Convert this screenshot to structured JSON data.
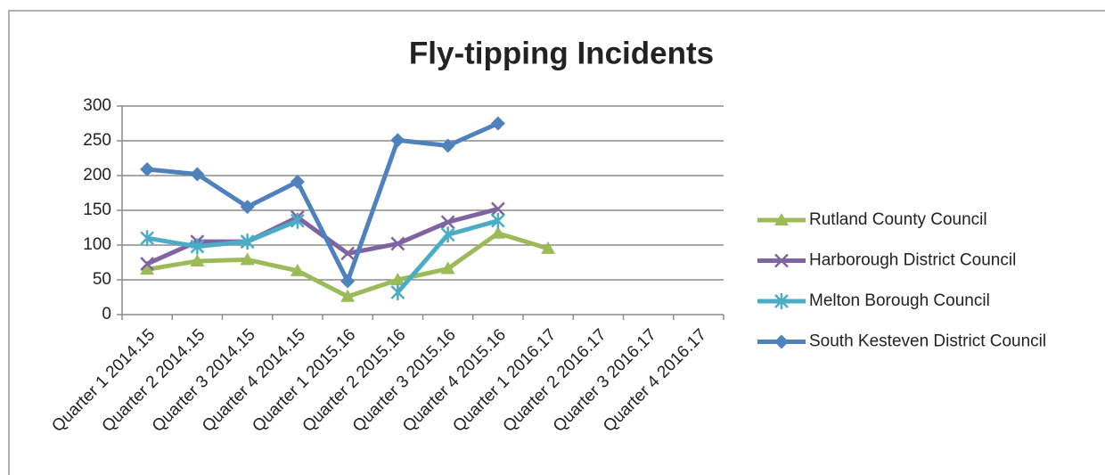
{
  "chart_data": {
    "type": "line",
    "title": "Fly-tipping Incidents",
    "categories": [
      "Quarter 1 2014.15",
      "Quarter 2 2014.15",
      "Quarter 3 2014.15",
      "Quarter 4 2014.15",
      "Quarter 1 2015.16",
      "Quarter 2 2015.16",
      "Quarter 3 2015.16",
      "Quarter 4 2015.16",
      "Quarter 1 2016.17",
      "Quarter 2 2016.17",
      "Quarter 3 2016.17",
      "Quarter 4 2016.17"
    ],
    "series": [
      {
        "name": "Rutland County Council",
        "color": "#9bbb59",
        "marker": "triangle",
        "values": [
          65,
          77,
          79,
          63,
          26,
          50,
          66,
          117,
          95,
          null,
          null,
          null
        ]
      },
      {
        "name": "Harborough District Council",
        "color": "#8064a2",
        "marker": "x",
        "values": [
          73,
          105,
          105,
          140,
          88,
          102,
          133,
          152,
          null,
          null,
          null,
          null
        ]
      },
      {
        "name": "Melton Borough Council",
        "color": "#4bacc6",
        "marker": "star",
        "values": [
          110,
          98,
          105,
          135,
          null,
          32,
          115,
          135,
          null,
          null,
          null,
          null
        ]
      },
      {
        "name": "South Kesteven District Council",
        "color": "#4f81bd",
        "marker": "diamond",
        "values": [
          209,
          202,
          155,
          191,
          48,
          251,
          243,
          275,
          null,
          null,
          null,
          null
        ]
      }
    ],
    "ylim": [
      0,
      300
    ],
    "yticks": [
      0,
      50,
      100,
      150,
      200,
      250,
      300
    ],
    "grid": true,
    "legend": "right"
  }
}
